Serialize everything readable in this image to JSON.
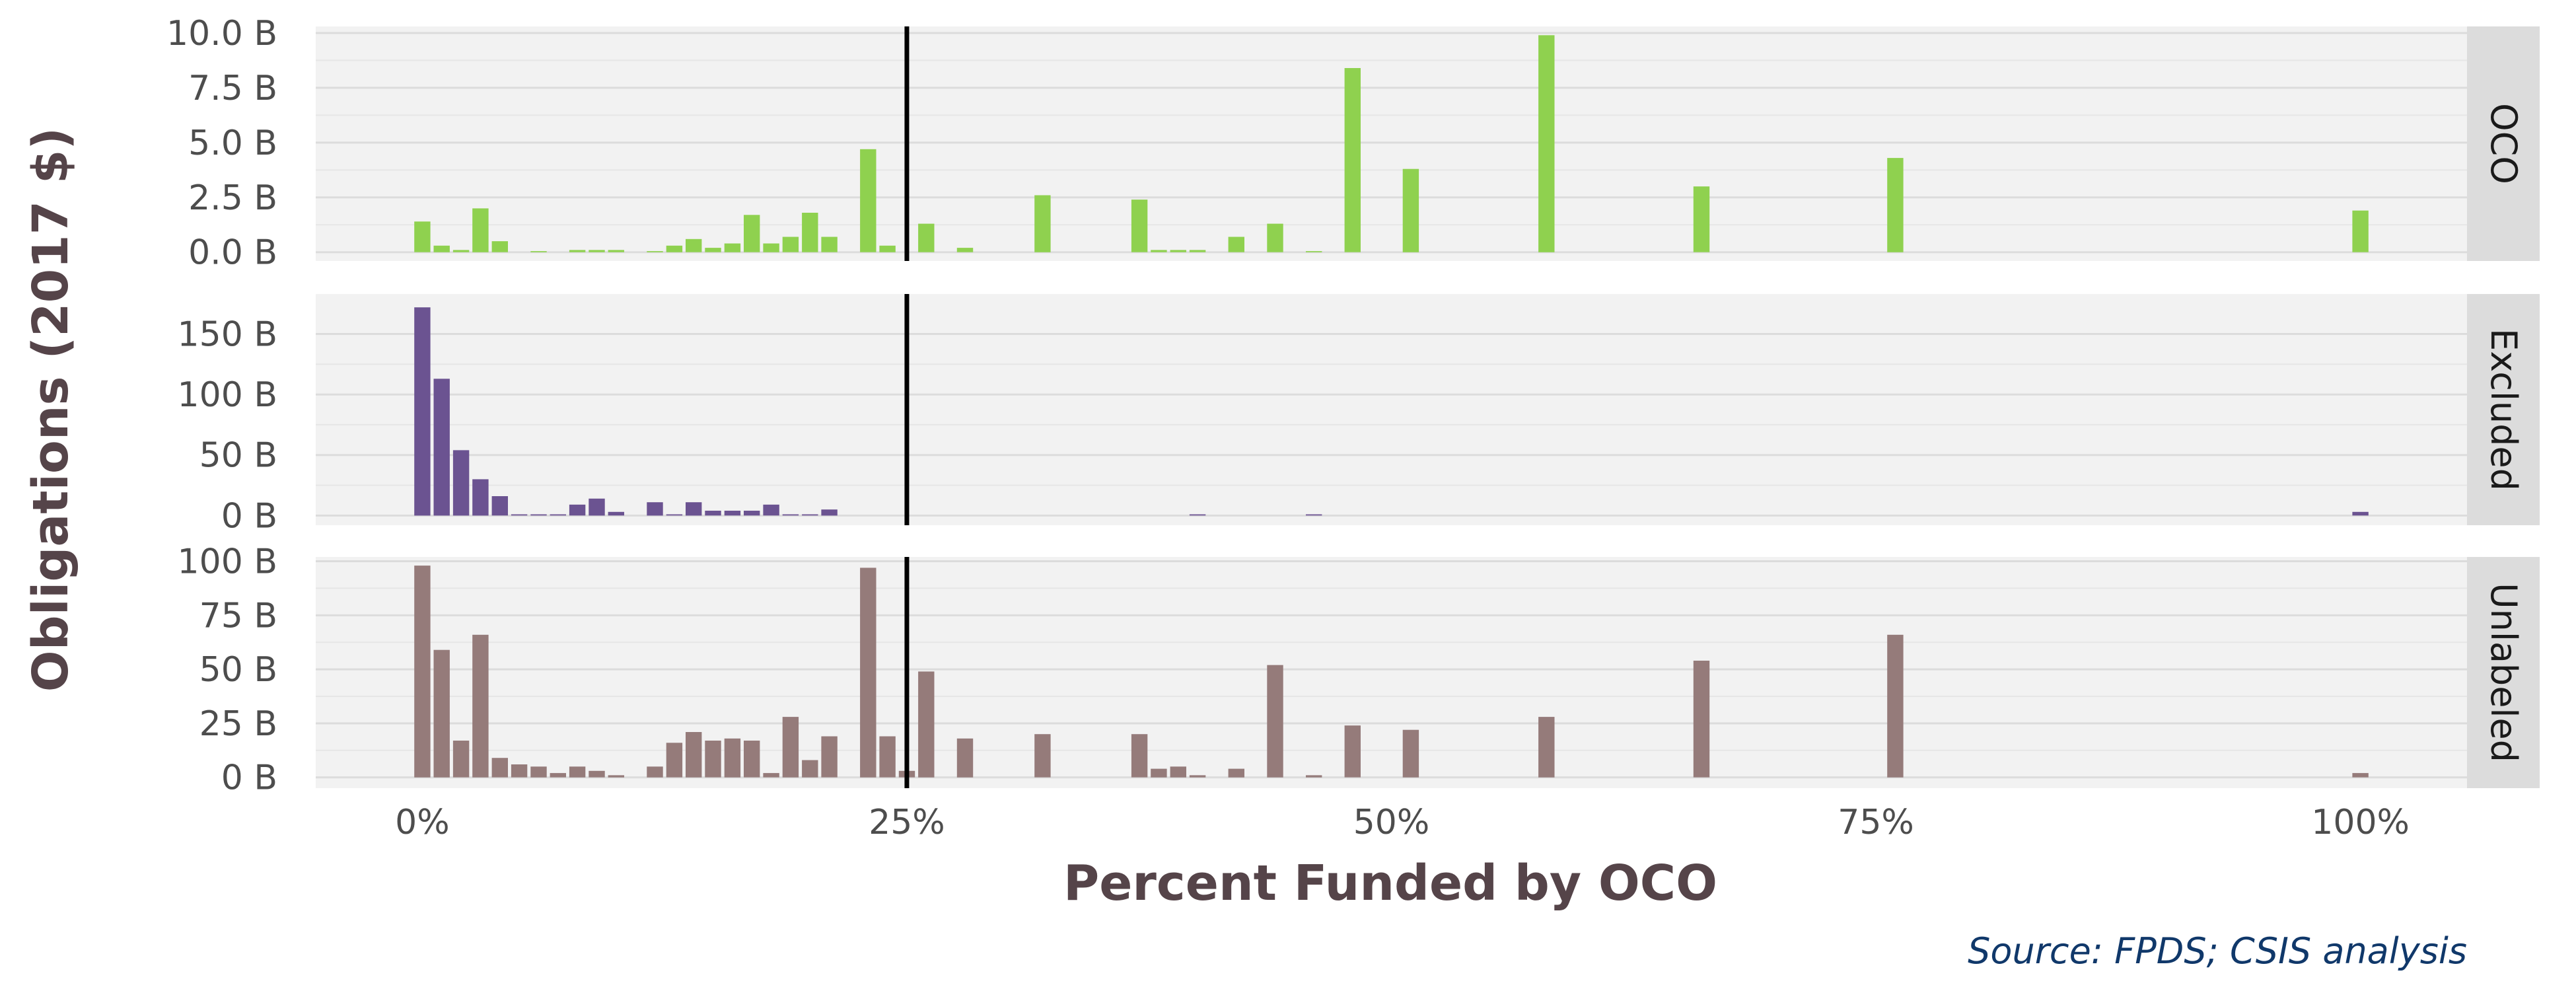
{
  "chart_data": {
    "type": "bar",
    "xlabel": "Percent Funded by OCO",
    "ylabel": "Obligations (2017 $)",
    "source": "Source: FPDS; CSIS analysis",
    "xlim": [
      -0.055,
      1.055
    ],
    "x_ticks": [
      {
        "value": 0,
        "label": "0%"
      },
      {
        "value": 0.25,
        "label": "25%"
      },
      {
        "value": 0.5,
        "label": "50%"
      },
      {
        "value": 0.75,
        "label": "75%"
      },
      {
        "value": 1,
        "label": "100%"
      }
    ],
    "reference_line": {
      "x": 0.25
    },
    "grid": true,
    "panels": [
      {
        "name": "OCO",
        "color": "#8fd14f",
        "ylim": [
          -0.4,
          10.3
        ],
        "y_ticks": [
          {
            "value": 0,
            "label": "0.0 B"
          },
          {
            "value": 2.5,
            "label": "2.5 B"
          },
          {
            "value": 5,
            "label": "5.0 B"
          },
          {
            "value": 7.5,
            "label": "7.5 B"
          },
          {
            "value": 10,
            "label": "10.0 B"
          }
        ],
        "bars": [
          {
            "x": 0.0,
            "y": 1.4
          },
          {
            "x": 0.01,
            "y": 0.3
          },
          {
            "x": 0.02,
            "y": 0.1
          },
          {
            "x": 0.03,
            "y": 2.0
          },
          {
            "x": 0.04,
            "y": 0.5
          },
          {
            "x": 0.06,
            "y": 0.05
          },
          {
            "x": 0.08,
            "y": 0.1
          },
          {
            "x": 0.09,
            "y": 0.1
          },
          {
            "x": 0.1,
            "y": 0.1
          },
          {
            "x": 0.12,
            "y": 0.05
          },
          {
            "x": 0.13,
            "y": 0.3
          },
          {
            "x": 0.14,
            "y": 0.6
          },
          {
            "x": 0.15,
            "y": 0.2
          },
          {
            "x": 0.16,
            "y": 0.4
          },
          {
            "x": 0.17,
            "y": 1.7
          },
          {
            "x": 0.18,
            "y": 0.4
          },
          {
            "x": 0.19,
            "y": 0.7
          },
          {
            "x": 0.2,
            "y": 1.8
          },
          {
            "x": 0.21,
            "y": 0.7
          },
          {
            "x": 0.23,
            "y": 4.7
          },
          {
            "x": 0.24,
            "y": 0.3
          },
          {
            "x": 0.26,
            "y": 1.3
          },
          {
            "x": 0.28,
            "y": 0.2
          },
          {
            "x": 0.32,
            "y": 2.6
          },
          {
            "x": 0.37,
            "y": 2.4
          },
          {
            "x": 0.38,
            "y": 0.1
          },
          {
            "x": 0.39,
            "y": 0.1
          },
          {
            "x": 0.4,
            "y": 0.1
          },
          {
            "x": 0.42,
            "y": 0.7
          },
          {
            "x": 0.44,
            "y": 1.3
          },
          {
            "x": 0.46,
            "y": 0.05
          },
          {
            "x": 0.48,
            "y": 8.4
          },
          {
            "x": 0.51,
            "y": 3.8
          },
          {
            "x": 0.58,
            "y": 9.9
          },
          {
            "x": 0.66,
            "y": 3.0
          },
          {
            "x": 0.76,
            "y": 4.3
          },
          {
            "x": 1.0,
            "y": 1.9
          }
        ]
      },
      {
        "name": "Excluded",
        "color": "#6b5391",
        "ylim": [
          -8,
          183
        ],
        "y_ticks": [
          {
            "value": 0,
            "label": "0 B"
          },
          {
            "value": 50,
            "label": "50 B"
          },
          {
            "value": 100,
            "label": "100 B"
          },
          {
            "value": 150,
            "label": "150 B"
          }
        ],
        "bars": [
          {
            "x": 0.0,
            "y": 172
          },
          {
            "x": 0.01,
            "y": 113
          },
          {
            "x": 0.02,
            "y": 54
          },
          {
            "x": 0.03,
            "y": 30
          },
          {
            "x": 0.04,
            "y": 16
          },
          {
            "x": 0.05,
            "y": 1
          },
          {
            "x": 0.06,
            "y": 1
          },
          {
            "x": 0.07,
            "y": 1
          },
          {
            "x": 0.08,
            "y": 9
          },
          {
            "x": 0.09,
            "y": 14
          },
          {
            "x": 0.1,
            "y": 3
          },
          {
            "x": 0.12,
            "y": 11
          },
          {
            "x": 0.13,
            "y": 1
          },
          {
            "x": 0.14,
            "y": 11
          },
          {
            "x": 0.15,
            "y": 4
          },
          {
            "x": 0.16,
            "y": 4
          },
          {
            "x": 0.17,
            "y": 4
          },
          {
            "x": 0.18,
            "y": 9
          },
          {
            "x": 0.19,
            "y": 1
          },
          {
            "x": 0.2,
            "y": 1
          },
          {
            "x": 0.21,
            "y": 5
          },
          {
            "x": 0.4,
            "y": 1
          },
          {
            "x": 0.46,
            "y": 1
          },
          {
            "x": 1.0,
            "y": 3
          }
        ]
      },
      {
        "name": "Unlabeled",
        "color": "#957b7a",
        "ylim": [
          -5,
          102
        ],
        "y_ticks": [
          {
            "value": 0,
            "label": "0 B"
          },
          {
            "value": 25,
            "label": "25 B"
          },
          {
            "value": 50,
            "label": "50 B"
          },
          {
            "value": 75,
            "label": "75 B"
          },
          {
            "value": 100,
            "label": "100 B"
          }
        ],
        "bars": [
          {
            "x": 0.0,
            "y": 98
          },
          {
            "x": 0.01,
            "y": 59
          },
          {
            "x": 0.02,
            "y": 17
          },
          {
            "x": 0.03,
            "y": 66
          },
          {
            "x": 0.04,
            "y": 9
          },
          {
            "x": 0.05,
            "y": 6
          },
          {
            "x": 0.06,
            "y": 5
          },
          {
            "x": 0.07,
            "y": 2
          },
          {
            "x": 0.08,
            "y": 5
          },
          {
            "x": 0.09,
            "y": 3
          },
          {
            "x": 0.1,
            "y": 1
          },
          {
            "x": 0.12,
            "y": 5
          },
          {
            "x": 0.13,
            "y": 16
          },
          {
            "x": 0.14,
            "y": 21
          },
          {
            "x": 0.15,
            "y": 17
          },
          {
            "x": 0.16,
            "y": 18
          },
          {
            "x": 0.17,
            "y": 17
          },
          {
            "x": 0.18,
            "y": 2
          },
          {
            "x": 0.19,
            "y": 28
          },
          {
            "x": 0.2,
            "y": 8
          },
          {
            "x": 0.21,
            "y": 19
          },
          {
            "x": 0.23,
            "y": 97
          },
          {
            "x": 0.24,
            "y": 19
          },
          {
            "x": 0.25,
            "y": 3
          },
          {
            "x": 0.26,
            "y": 49
          },
          {
            "x": 0.28,
            "y": 18
          },
          {
            "x": 0.32,
            "y": 20
          },
          {
            "x": 0.37,
            "y": 20
          },
          {
            "x": 0.38,
            "y": 4
          },
          {
            "x": 0.39,
            "y": 5
          },
          {
            "x": 0.4,
            "y": 1
          },
          {
            "x": 0.42,
            "y": 4
          },
          {
            "x": 0.44,
            "y": 52
          },
          {
            "x": 0.46,
            "y": 1
          },
          {
            "x": 0.48,
            "y": 24
          },
          {
            "x": 0.51,
            "y": 22
          },
          {
            "x": 0.58,
            "y": 28
          },
          {
            "x": 0.66,
            "y": 54
          },
          {
            "x": 0.76,
            "y": 66
          },
          {
            "x": 1.0,
            "y": 2
          }
        ]
      }
    ]
  }
}
